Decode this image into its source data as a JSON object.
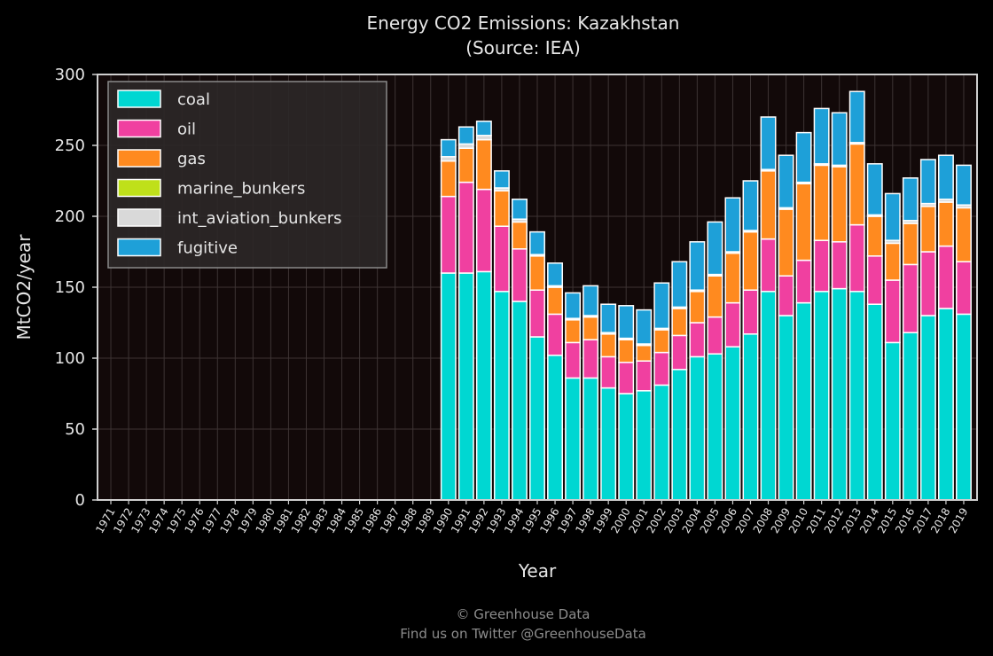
{
  "chart_data": {
    "type": "bar",
    "stacked": true,
    "title": "Energy CO2 Emissions: Kazakhstan",
    "subtitle": "(Source: IEA)",
    "xlabel": "Year",
    "ylabel": "MtCO2/year",
    "ylim": [
      0,
      300
    ],
    "yticks": [
      0,
      50,
      100,
      150,
      200,
      250,
      300
    ],
    "grid": true,
    "legend_position": "top-left",
    "categories": [
      "1971",
      "1972",
      "1973",
      "1974",
      "1975",
      "1976",
      "1977",
      "1978",
      "1979",
      "1980",
      "1981",
      "1982",
      "1983",
      "1984",
      "1985",
      "1986",
      "1987",
      "1988",
      "1989",
      "1990",
      "1991",
      "1992",
      "1993",
      "1994",
      "1995",
      "1996",
      "1997",
      "1998",
      "1999",
      "2000",
      "2001",
      "2002",
      "2003",
      "2004",
      "2005",
      "2006",
      "2007",
      "2008",
      "2009",
      "2010",
      "2011",
      "2012",
      "2013",
      "2014",
      "2015",
      "2016",
      "2017",
      "2018",
      "2019"
    ],
    "series": [
      {
        "name": "coal",
        "color": "#00d7d2",
        "values": [
          0,
          0,
          0,
          0,
          0,
          0,
          0,
          0,
          0,
          0,
          0,
          0,
          0,
          0,
          0,
          0,
          0,
          0,
          0,
          160,
          160,
          161,
          147,
          140,
          115,
          102,
          86,
          86,
          79,
          75,
          77,
          81,
          92,
          101,
          103,
          108,
          117,
          147,
          130,
          139,
          147,
          149,
          147,
          138,
          111,
          118,
          130,
          135,
          131
        ]
      },
      {
        "name": "oil",
        "color": "#f040a0",
        "values": [
          0,
          0,
          0,
          0,
          0,
          0,
          0,
          0,
          0,
          0,
          0,
          0,
          0,
          0,
          0,
          0,
          0,
          0,
          0,
          54,
          64,
          58,
          46,
          37,
          33,
          29,
          25,
          27,
          22,
          22,
          21,
          23,
          24,
          24,
          26,
          31,
          31,
          37,
          28,
          30,
          36,
          33,
          47,
          34,
          44,
          48,
          45,
          44,
          37
        ]
      },
      {
        "name": "gas",
        "color": "#ff8a1f",
        "values": [
          0,
          0,
          0,
          0,
          0,
          0,
          0,
          0,
          0,
          0,
          0,
          0,
          0,
          0,
          0,
          0,
          0,
          0,
          0,
          25,
          24,
          35,
          25,
          19,
          24,
          19,
          16,
          16,
          16,
          16,
          11,
          16,
          19,
          22,
          29,
          35,
          41,
          48,
          47,
          54,
          53,
          53,
          57,
          28,
          26,
          29,
          32,
          31,
          38
        ]
      },
      {
        "name": "marine_bunkers",
        "color": "#bfe01a",
        "values": [
          0,
          0,
          0,
          0,
          0,
          0,
          0,
          0,
          0,
          0,
          0,
          0,
          0,
          0,
          0,
          0,
          0,
          0,
          0,
          0,
          0,
          0,
          0,
          0,
          0,
          0,
          0,
          0,
          0,
          0,
          0,
          0,
          0,
          0,
          0,
          0,
          0,
          0,
          0,
          0,
          0,
          0,
          0,
          0,
          0,
          0,
          0,
          0,
          0
        ]
      },
      {
        "name": "int_aviation_bunkers",
        "color": "#d9d9d9",
        "values": [
          0,
          0,
          0,
          0,
          0,
          0,
          0,
          0,
          0,
          0,
          0,
          0,
          0,
          0,
          0,
          0,
          0,
          0,
          0,
          3,
          3,
          3,
          2,
          2,
          1,
          1,
          1,
          1,
          1,
          1,
          1,
          1,
          1,
          1,
          1,
          1,
          1,
          1,
          1,
          1,
          1,
          1,
          1,
          1,
          2,
          2,
          2,
          2,
          2
        ]
      },
      {
        "name": "fugitive",
        "color": "#1ea0d8",
        "values": [
          0,
          0,
          0,
          0,
          0,
          0,
          0,
          0,
          0,
          0,
          0,
          0,
          0,
          0,
          0,
          0,
          0,
          0,
          0,
          12,
          12,
          10,
          12,
          14,
          16,
          16,
          18,
          21,
          20,
          23,
          24,
          32,
          32,
          34,
          37,
          38,
          35,
          37,
          37,
          35,
          39,
          37,
          36,
          36,
          33,
          30,
          31,
          31,
          28
        ]
      }
    ]
  },
  "footer": {
    "line1": "© Greenhouse Data",
    "line2": "Find us on Twitter @GreenhouseData"
  }
}
